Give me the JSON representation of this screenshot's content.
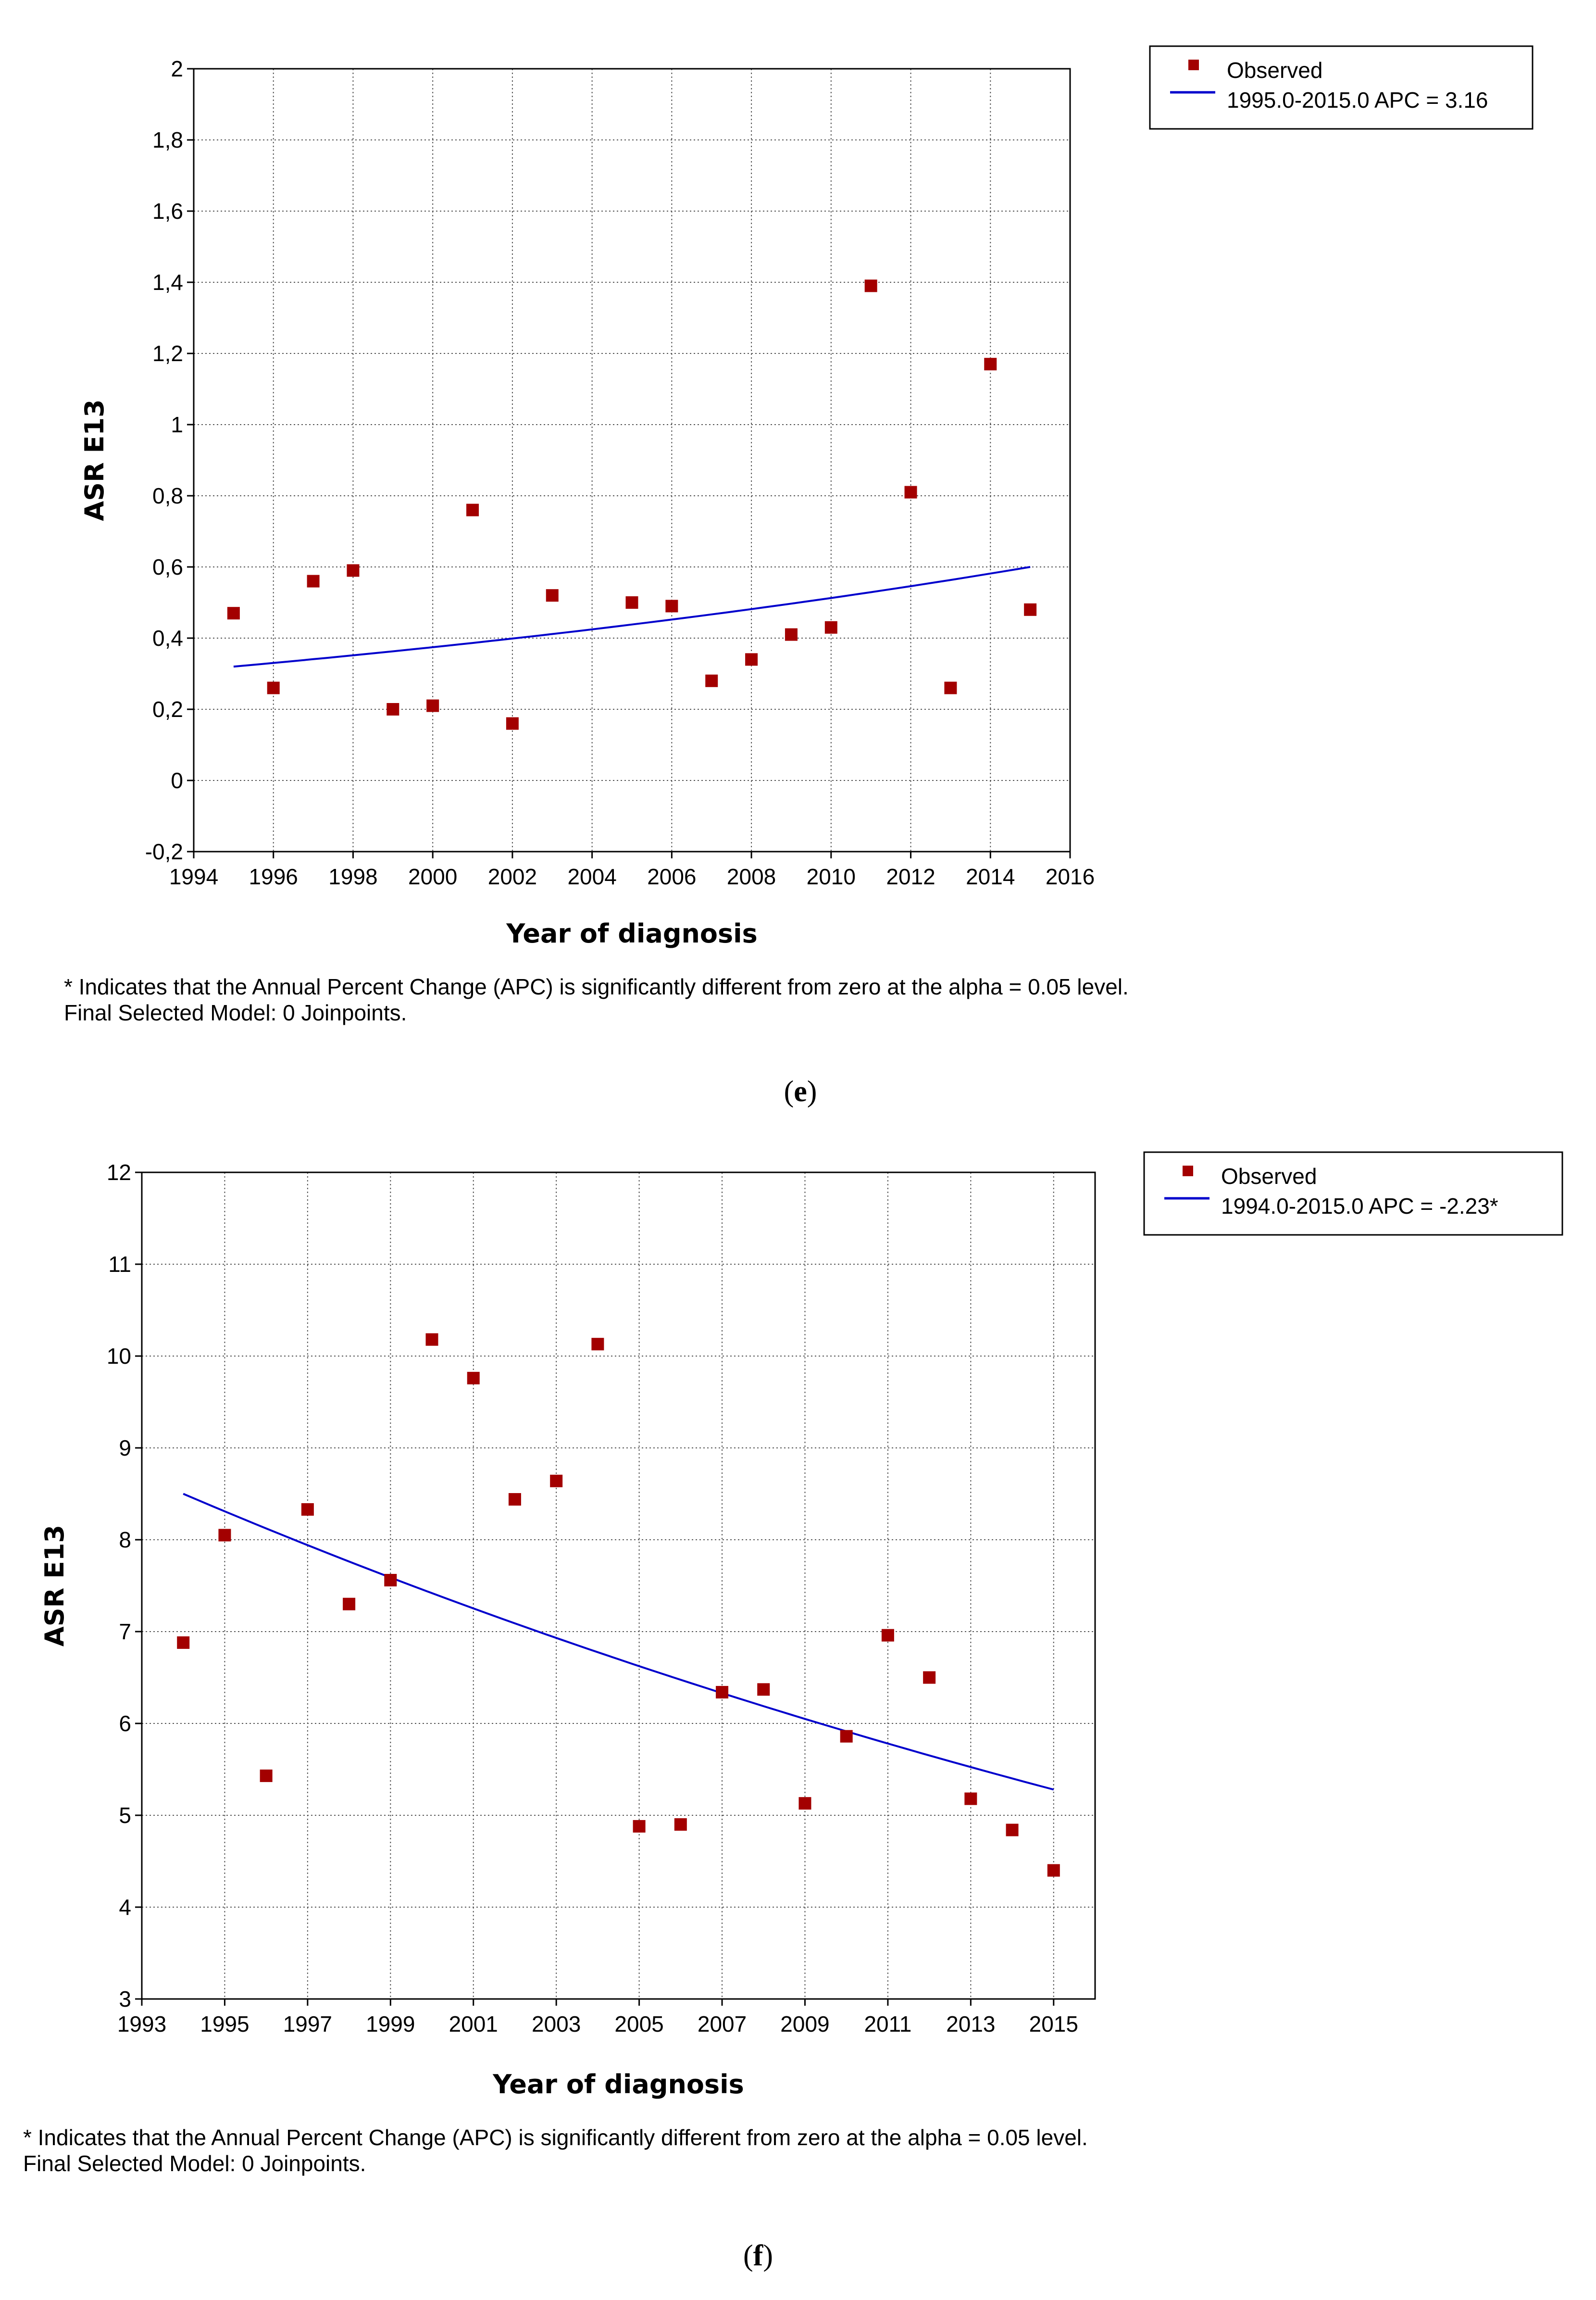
{
  "chart_data": [
    {
      "panel": "e",
      "type": "scatter",
      "xlabel": "Year of diagnosis",
      "ylabel": "ASR E13",
      "xlim": [
        1994,
        2016
      ],
      "ylim": [
        -0.2,
        2
      ],
      "xticks": [
        1994,
        1996,
        1998,
        2000,
        2002,
        2004,
        2006,
        2008,
        2010,
        2012,
        2014,
        2016
      ],
      "yticks": [
        -0.2,
        0,
        0.2,
        0.4,
        0.6,
        0.8,
        1,
        1.2,
        1.4,
        1.6,
        1.8,
        2
      ],
      "ytick_labels": [
        "-0,2",
        "0",
        "0,2",
        "0,4",
        "0,6",
        "0,8",
        "1",
        "1,2",
        "1,4",
        "1,6",
        "1,8",
        "2"
      ],
      "observed": {
        "name": "Observed",
        "color": "#a30000",
        "x": [
          1995,
          1996,
          1997,
          1998,
          1999,
          2000,
          2001,
          2002,
          2003,
          2005,
          2006,
          2007,
          2008,
          2009,
          2010,
          2011,
          2012,
          2013,
          2014,
          2015
        ],
        "y": [
          0.47,
          0.26,
          0.56,
          0.59,
          0.2,
          0.21,
          0.76,
          0.16,
          0.52,
          0.5,
          0.49,
          0.28,
          0.34,
          0.41,
          0.43,
          1.39,
          0.81,
          0.26,
          1.17,
          0.48
        ]
      },
      "fit": {
        "name": "1995.0-2015.0 APC  = 3.16",
        "color": "#0000cc",
        "x_start": 1995,
        "x_end": 2015,
        "y_start": 0.32,
        "y_end": 0.6,
        "curve": "exponential"
      },
      "notes": [
        "* Indicates that the Annual Percent Change (APC) is significantly different from zero at the alpha = 0.05 level.",
        "Final Selected Model: 0 Joinpoints."
      ],
      "label_open": "(",
      "label_letter": "e",
      "label_close": ")"
    },
    {
      "panel": "f",
      "type": "scatter",
      "xlabel": "Year of diagnosis",
      "ylabel": "ASR E13",
      "xlim": [
        1993,
        2016
      ],
      "ylim": [
        3,
        12
      ],
      "xticks": [
        1993,
        1995,
        1997,
        1999,
        2001,
        2003,
        2005,
        2007,
        2009,
        2011,
        2013,
        2015
      ],
      "yticks": [
        3,
        4,
        5,
        6,
        7,
        8,
        9,
        10,
        11,
        12
      ],
      "ytick_labels": [
        "3",
        "4",
        "5",
        "6",
        "7",
        "8",
        "9",
        "10",
        "11",
        "12"
      ],
      "observed": {
        "name": "Observed",
        "color": "#a30000",
        "x": [
          1994,
          1995,
          1996,
          1997,
          1998,
          1999,
          2000,
          2001,
          2002,
          2003,
          2004,
          2005,
          2006,
          2007,
          2008,
          2009,
          2010,
          2011,
          2012,
          2013,
          2014,
          2015
        ],
        "y": [
          6.88,
          8.05,
          5.43,
          8.33,
          7.3,
          7.56,
          10.18,
          9.76,
          8.44,
          8.64,
          10.13,
          4.88,
          4.9,
          6.34,
          6.37,
          5.13,
          5.86,
          6.96,
          6.5,
          5.18,
          4.84,
          4.4
        ]
      },
      "fit": {
        "name": "1994.0-2015.0 APC  = -2.23*",
        "color": "#0000cc",
        "x_start": 1994,
        "x_end": 2015,
        "y_start": 8.5,
        "y_end": 5.28,
        "curve": "exponential"
      },
      "notes": [
        "* Indicates that the Annual Percent Change (APC) is significantly different from zero at the alpha = 0.05 level.",
        "Final Selected Model: 0 Joinpoints."
      ],
      "label_open": "(",
      "label_letter": "f",
      "label_close": ")"
    }
  ]
}
